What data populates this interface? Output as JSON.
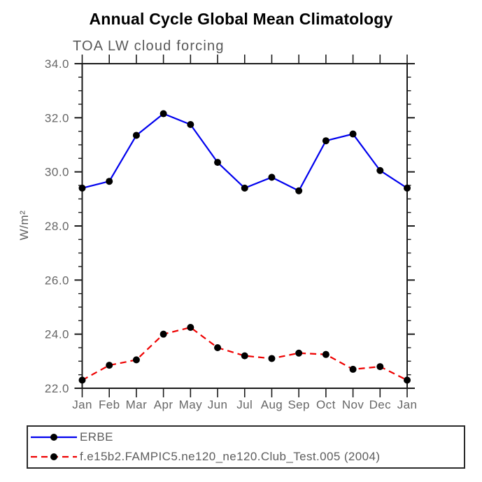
{
  "title": "Annual Cycle Global Mean Climatology",
  "subtitle": "TOA LW cloud forcing",
  "ylabel": "W/m²",
  "colors": {
    "erbe_line": "#0000ee",
    "model_line": "#ee0000",
    "marker": "#000000",
    "frame": "#1a1a1a",
    "text_gray": "#5d5d5d"
  },
  "chart_data": {
    "type": "line",
    "title": "Annual Cycle Global Mean Climatology",
    "subtitle": "TOA LW cloud forcing",
    "ylabel": "W/m²",
    "categories": [
      "Jan",
      "Feb",
      "Mar",
      "Apr",
      "May",
      "Jun",
      "Jul",
      "Aug",
      "Sep",
      "Oct",
      "Nov",
      "Dec",
      "Jan"
    ],
    "series": [
      {
        "name": "ERBE",
        "color": "#0000ee",
        "style": "solid",
        "marker": "filled-circle",
        "values": [
          29.4,
          29.65,
          31.35,
          32.15,
          31.75,
          30.35,
          29.4,
          29.8,
          29.3,
          31.15,
          31.4,
          30.05,
          29.4
        ]
      },
      {
        "name": "f.e15b2.FAMPIC5.ne120_ne120.Club_Test.005 (2004)",
        "color": "#ee0000",
        "style": "dashed",
        "marker": "filled-circle",
        "values": [
          22.3,
          22.85,
          23.05,
          24.0,
          24.25,
          23.5,
          23.2,
          23.1,
          23.3,
          23.25,
          22.7,
          22.8,
          22.3
        ]
      }
    ],
    "ylim": [
      22.0,
      34.0
    ],
    "ytick_step": 2.0,
    "yminor_step": 0.5,
    "ytick_labels": [
      "22.0",
      "24.0",
      "26.0",
      "28.0",
      "30.0",
      "32.0",
      "34.0"
    ],
    "grid": false,
    "legend_position": "bottom"
  }
}
